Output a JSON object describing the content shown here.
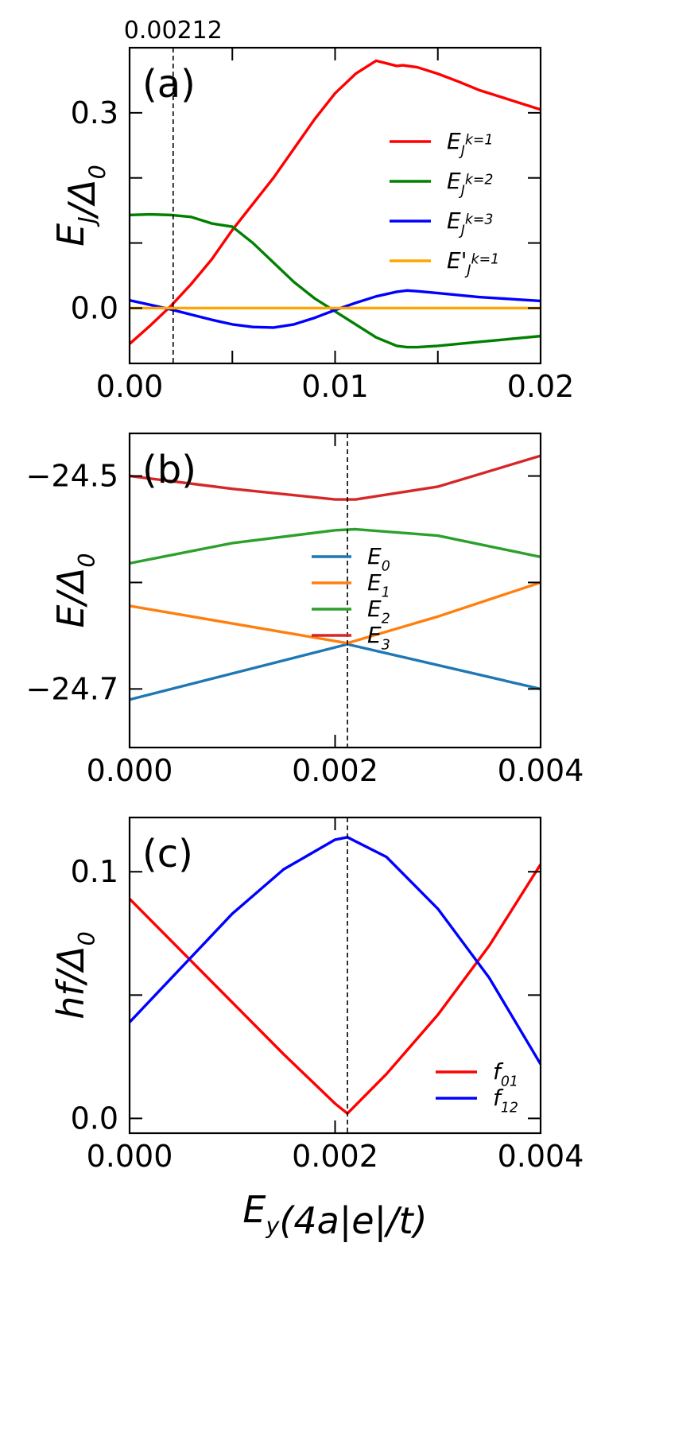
{
  "chart_data": [
    {
      "type": "line",
      "panel_label": "(a)",
      "top_annotation": "0.00212",
      "xlim": [
        0,
        0.02
      ],
      "ylim": [
        -0.085,
        0.4
      ],
      "xticks": [
        0,
        0.005,
        0.01,
        0.015,
        0.02
      ],
      "xtick_labels": [
        {
          "v": 0,
          "t": "0.00"
        },
        {
          "v": 0.01,
          "t": "0.01"
        },
        {
          "v": 0.02,
          "t": "0.02"
        }
      ],
      "yticks": [
        0,
        0.1,
        0.2,
        0.3
      ],
      "ytick_labels": [
        {
          "v": 0,
          "t": "0.0"
        },
        {
          "v": 0.3,
          "t": "0.3"
        }
      ],
      "ylabel": "E_J/Δ_0",
      "vline": 0.00212,
      "legend_position": "right",
      "series": [
        {
          "name": "E_J^{k=1}",
          "color": "#ff0000",
          "x": [
            0,
            0.001,
            0.002,
            0.003,
            0.004,
            0.005,
            0.006,
            0.007,
            0.008,
            0.009,
            0.01,
            0.011,
            0.012,
            0.013,
            0.0133,
            0.014,
            0.015,
            0.016,
            0.017,
            0.018,
            0.019,
            0.02
          ],
          "y": [
            -0.055,
            -0.027,
            0.003,
            0.037,
            0.075,
            0.12,
            0.16,
            0.2,
            0.245,
            0.29,
            0.33,
            0.36,
            0.38,
            0.372,
            0.373,
            0.37,
            0.36,
            0.348,
            0.335,
            0.325,
            0.315,
            0.305
          ]
        },
        {
          "name": "E_J^{k=2}",
          "color": "#008000",
          "x": [
            0,
            0.001,
            0.002,
            0.003,
            0.004,
            0.005,
            0.006,
            0.007,
            0.008,
            0.009,
            0.01,
            0.011,
            0.012,
            0.013,
            0.0135,
            0.014,
            0.015,
            0.016,
            0.017,
            0.018,
            0.019,
            0.02
          ],
          "y": [
            0.143,
            0.144,
            0.143,
            0.14,
            0.13,
            0.125,
            0.1,
            0.07,
            0.04,
            0.015,
            -0.005,
            -0.025,
            -0.045,
            -0.058,
            -0.06,
            -0.06,
            -0.058,
            -0.055,
            -0.052,
            -0.049,
            -0.046,
            -0.043
          ]
        },
        {
          "name": "E_J^{k=3}",
          "color": "#0000ff",
          "x": [
            0,
            0.001,
            0.002,
            0.003,
            0.004,
            0.005,
            0.006,
            0.007,
            0.008,
            0.009,
            0.01,
            0.011,
            0.012,
            0.013,
            0.0135,
            0.014,
            0.015,
            0.016,
            0.017,
            0.018,
            0.019,
            0.02
          ],
          "y": [
            0.012,
            0.005,
            -0.002,
            -0.01,
            -0.018,
            -0.025,
            -0.029,
            -0.03,
            -0.025,
            -0.015,
            -0.003,
            0.008,
            0.018,
            0.025,
            0.027,
            0.026,
            0.023,
            0.02,
            0.017,
            0.015,
            0.013,
            0.011
          ]
        },
        {
          "name": "E'_J^{k=1}",
          "color": "#ffa500",
          "x": [
            0,
            0.02
          ],
          "y": [
            0,
            0
          ]
        }
      ]
    },
    {
      "type": "line",
      "panel_label": "(b)",
      "xlim": [
        0,
        0.004
      ],
      "ylim": [
        -24.755,
        -24.46
      ],
      "xticks": [
        0,
        0.002,
        0.004
      ],
      "xtick_labels": [
        {
          "v": 0,
          "t": "0.000"
        },
        {
          "v": 0.002,
          "t": "0.002"
        },
        {
          "v": 0.004,
          "t": "0.004"
        }
      ],
      "yticks": [
        -24.7,
        -24.6,
        -24.5
      ],
      "ytick_labels": [
        {
          "v": -24.7,
          "t": "−24.7"
        },
        {
          "v": -24.5,
          "t": "−24.5"
        }
      ],
      "ylabel": "E/Δ_0",
      "vline": 0.00212,
      "legend_position": "center",
      "series": [
        {
          "name": "E_0",
          "color": "#1f77b4",
          "x": [
            0,
            0.00212,
            0.004
          ],
          "y": [
            -24.71,
            -24.658,
            -24.7
          ]
        },
        {
          "name": "E_1",
          "color": "#ff7f0e",
          "x": [
            0,
            0.00212,
            0.003,
            0.004
          ],
          "y": [
            -24.622,
            -24.657,
            -24.632,
            -24.6
          ]
        },
        {
          "name": "E_2",
          "color": "#2ca02c",
          "x": [
            0,
            0.001,
            0.002,
            0.0022,
            0.003,
            0.004
          ],
          "y": [
            -24.582,
            -24.563,
            -24.551,
            -24.55,
            -24.556,
            -24.576
          ]
        },
        {
          "name": "E_3",
          "color": "#d62728",
          "x": [
            0,
            0.001,
            0.002,
            0.0022,
            0.003,
            0.004
          ],
          "y": [
            -24.5,
            -24.512,
            -24.522,
            -24.522,
            -24.51,
            -24.481
          ]
        }
      ]
    },
    {
      "type": "line",
      "panel_label": "(c)",
      "xlim": [
        0,
        0.004
      ],
      "ylim": [
        -0.006,
        0.122
      ],
      "xticks": [
        0,
        0.002,
        0.004
      ],
      "xtick_labels": [
        {
          "v": 0,
          "t": "0.000"
        },
        {
          "v": 0.002,
          "t": "0.002"
        },
        {
          "v": 0.004,
          "t": "0.004"
        }
      ],
      "yticks": [
        0,
        0.05,
        0.1
      ],
      "ytick_labels": [
        {
          "v": 0,
          "t": "0.0"
        },
        {
          "v": 0.1,
          "t": "0.1"
        }
      ],
      "ylabel": "hf/Δ_0",
      "xlabel": "E_y(4a|e|/t)",
      "vline": 0.00212,
      "legend_position": "lower right",
      "series": [
        {
          "name": "f_01",
          "color": "#ff0000",
          "x": [
            0,
            0.0005,
            0.001,
            0.0015,
            0.002,
            0.00212,
            0.0025,
            0.003,
            0.0035,
            0.004
          ],
          "y": [
            0.089,
            0.068,
            0.047,
            0.026,
            0.006,
            0.002,
            0.018,
            0.042,
            0.07,
            0.103
          ]
        },
        {
          "name": "f_12",
          "color": "#0000ff",
          "x": [
            0,
            0.0005,
            0.001,
            0.0015,
            0.002,
            0.00212,
            0.0025,
            0.003,
            0.0035,
            0.004
          ],
          "y": [
            0.039,
            0.061,
            0.083,
            0.101,
            0.113,
            0.114,
            0.106,
            0.085,
            0.057,
            0.022
          ]
        }
      ]
    }
  ]
}
